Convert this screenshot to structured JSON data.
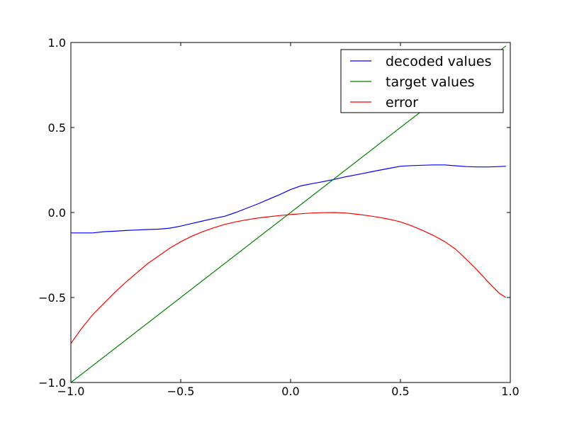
{
  "chart_data": {
    "type": "line",
    "title": "",
    "xlabel": "",
    "ylabel": "",
    "xlim": [
      -1.0,
      1.0
    ],
    "ylim": [
      -1.0,
      1.0
    ],
    "grid": false,
    "legend_position": "top-right",
    "x_ticks": [
      {
        "value": -1.0,
        "label": "−1.0"
      },
      {
        "value": -0.5,
        "label": "−0.5"
      },
      {
        "value": 0.0,
        "label": "0.0"
      },
      {
        "value": 0.5,
        "label": "0.5"
      },
      {
        "value": 1.0,
        "label": "1.0"
      }
    ],
    "y_ticks": [
      {
        "value": -1.0,
        "label": "−1.0"
      },
      {
        "value": -0.5,
        "label": "−0.5"
      },
      {
        "value": 0.0,
        "label": "0.0"
      },
      {
        "value": 0.5,
        "label": "0.5"
      },
      {
        "value": 1.0,
        "label": "1.0"
      }
    ],
    "series": [
      {
        "name": "decoded values",
        "color": "#0000ff",
        "points": [
          [
            -1.0,
            -0.12
          ],
          [
            -0.95,
            -0.12
          ],
          [
            -0.9,
            -0.12
          ],
          [
            -0.85,
            -0.113
          ],
          [
            -0.8,
            -0.11
          ],
          [
            -0.75,
            -0.106
          ],
          [
            -0.7,
            -0.103
          ],
          [
            -0.65,
            -0.1
          ],
          [
            -0.6,
            -0.098
          ],
          [
            -0.55,
            -0.092
          ],
          [
            -0.5,
            -0.08
          ],
          [
            -0.45,
            -0.065
          ],
          [
            -0.4,
            -0.05
          ],
          [
            -0.35,
            -0.035
          ],
          [
            -0.3,
            -0.022
          ],
          [
            -0.25,
            0.0
          ],
          [
            -0.2,
            0.025
          ],
          [
            -0.15,
            0.05
          ],
          [
            -0.1,
            0.078
          ],
          [
            -0.05,
            0.105
          ],
          [
            0.0,
            0.135
          ],
          [
            0.05,
            0.158
          ],
          [
            0.1,
            0.17
          ],
          [
            0.15,
            0.182
          ],
          [
            0.2,
            0.195
          ],
          [
            0.25,
            0.21
          ],
          [
            0.3,
            0.222
          ],
          [
            0.35,
            0.235
          ],
          [
            0.4,
            0.248
          ],
          [
            0.45,
            0.26
          ],
          [
            0.5,
            0.272
          ],
          [
            0.55,
            0.276
          ],
          [
            0.6,
            0.278
          ],
          [
            0.65,
            0.28
          ],
          [
            0.7,
            0.28
          ],
          [
            0.75,
            0.275
          ],
          [
            0.8,
            0.27
          ],
          [
            0.85,
            0.268
          ],
          [
            0.9,
            0.268
          ],
          [
            0.95,
            0.27
          ],
          [
            0.98,
            0.272
          ]
        ]
      },
      {
        "name": "target values",
        "color": "#008000",
        "points": [
          [
            -1.0,
            -1.0
          ],
          [
            0.98,
            0.98
          ]
        ]
      },
      {
        "name": "error",
        "color": "#ff0000",
        "points": [
          [
            -1.0,
            -0.77
          ],
          [
            -0.95,
            -0.68
          ],
          [
            -0.9,
            -0.6
          ],
          [
            -0.85,
            -0.535
          ],
          [
            -0.8,
            -0.47
          ],
          [
            -0.75,
            -0.41
          ],
          [
            -0.7,
            -0.355
          ],
          [
            -0.65,
            -0.3
          ],
          [
            -0.6,
            -0.255
          ],
          [
            -0.55,
            -0.21
          ],
          [
            -0.5,
            -0.172
          ],
          [
            -0.45,
            -0.14
          ],
          [
            -0.4,
            -0.113
          ],
          [
            -0.35,
            -0.09
          ],
          [
            -0.3,
            -0.07
          ],
          [
            -0.25,
            -0.055
          ],
          [
            -0.2,
            -0.043
          ],
          [
            -0.15,
            -0.033
          ],
          [
            -0.1,
            -0.025
          ],
          [
            -0.05,
            -0.018
          ],
          [
            0.0,
            -0.012
          ],
          [
            0.05,
            -0.007
          ],
          [
            0.1,
            -0.003
          ],
          [
            0.15,
            -0.001
          ],
          [
            0.2,
            0.0
          ],
          [
            0.25,
            -0.003
          ],
          [
            0.3,
            -0.01
          ],
          [
            0.35,
            -0.018
          ],
          [
            0.4,
            -0.028
          ],
          [
            0.45,
            -0.04
          ],
          [
            0.5,
            -0.055
          ],
          [
            0.55,
            -0.078
          ],
          [
            0.6,
            -0.105
          ],
          [
            0.65,
            -0.135
          ],
          [
            0.7,
            -0.17
          ],
          [
            0.75,
            -0.215
          ],
          [
            0.8,
            -0.275
          ],
          [
            0.85,
            -0.34
          ],
          [
            0.9,
            -0.41
          ],
          [
            0.95,
            -0.475
          ],
          [
            0.98,
            -0.5
          ]
        ]
      }
    ]
  }
}
